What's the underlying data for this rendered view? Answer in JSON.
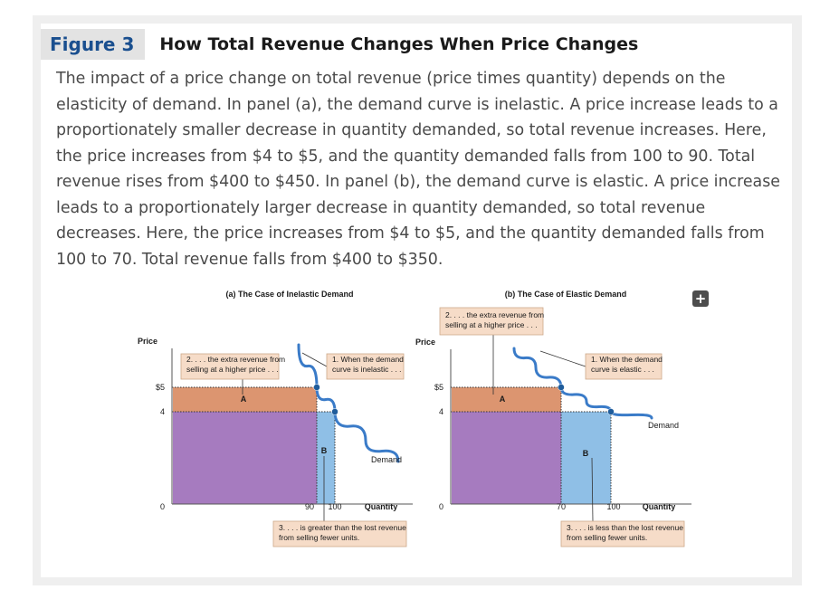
{
  "figure": {
    "number": "Figure 3",
    "title": "How Total Revenue Changes When Price Changes",
    "caption": "The impact of a price change on total revenue (price times quantity) depends on the elasticity of demand. In panel (a), the demand curve is inelastic. A price increase leads to a proportionately smaller decrease in quantity demanded, so total revenue increases. Here, the price increases from $4 to $5, and the quantity demanded falls from 100 to 90. Total revenue rises from $400 to $450. In panel (b), the demand curve is elastic. A price increase leads to a proportionately larger decrease in quantity demanded, so total revenue decreases. Here, the price increases from $4 to $5, and the quantity demanded falls from 100 to 70. Total revenue falls from $400 to $350.",
    "expand_icon": "plus-icon"
  },
  "colors": {
    "area_A": "#dc9570",
    "area_purple": "#a67bbf",
    "area_B": "#8fbfe6",
    "demand_curve": "#3a7bc8"
  },
  "chart_data": [
    {
      "type": "line",
      "panel": "a",
      "title": "(a) The Case of Inelastic Demand",
      "ylabel": "Price",
      "xlabel": "Quantity",
      "y_ticks": [
        "$5",
        "4",
        "0"
      ],
      "x_ticks": [
        "90",
        "100"
      ],
      "series": [
        {
          "name": "Demand",
          "points": [
            [
              82,
              6.1
            ],
            [
              90,
              5
            ],
            [
              100,
              4
            ],
            [
              115,
              2.8
            ],
            [
              132,
              1.9
            ]
          ]
        }
      ],
      "highlight_points": [
        [
          90,
          5
        ],
        [
          100,
          4
        ]
      ],
      "areas": {
        "A": "A",
        "B": "B"
      },
      "annotations": {
        "curve": [
          "1. When the demand",
          "curve is inelastic . . ."
        ],
        "revenue_gain": [
          "2. . . . the extra revenue from",
          "selling at a higher price . . ."
        ],
        "revenue_loss": [
          "3. . . . is greater than the lost revenue",
          "from selling fewer units."
        ]
      }
    },
    {
      "type": "line",
      "panel": "b",
      "title": "(b) The Case of Elastic Demand",
      "ylabel": "Price",
      "xlabel": "Quantity",
      "y_ticks": [
        "$5",
        "4",
        "0"
      ],
      "x_ticks": [
        "70",
        "100"
      ],
      "series": [
        {
          "name": "Demand",
          "points": [
            [
              40,
              6.7
            ],
            [
              70,
              5
            ],
            [
              100,
              4
            ],
            [
              130,
              3.6
            ]
          ]
        }
      ],
      "highlight_points": [
        [
          70,
          5
        ],
        [
          100,
          4
        ]
      ],
      "areas": {
        "A": "A",
        "B": "B"
      },
      "annotations": {
        "curve": [
          "1. When the demand",
          "curve is elastic . . ."
        ],
        "revenue_gain": [
          "2. . . . the extra revenue from",
          "selling at a higher price . . ."
        ],
        "revenue_loss": [
          "3. . . . is less than the lost revenue",
          "from selling fewer units."
        ]
      }
    }
  ]
}
